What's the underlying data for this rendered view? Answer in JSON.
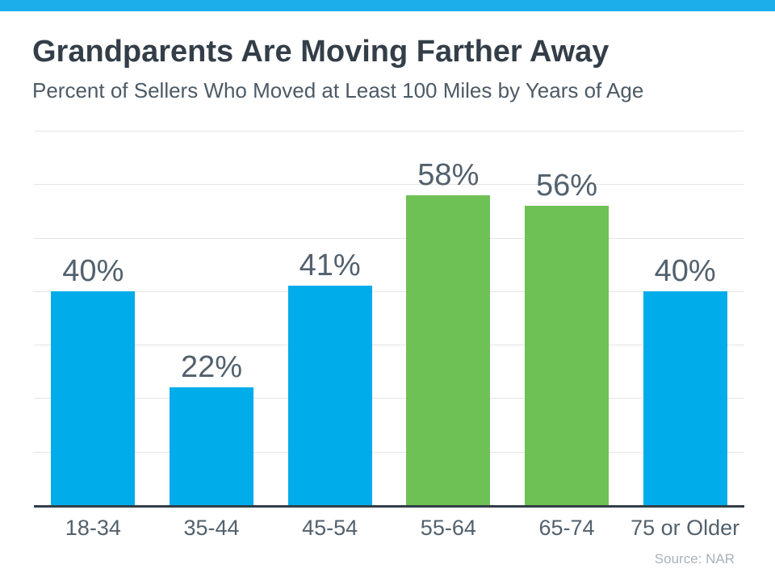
{
  "accent": {
    "top_bar_color": "#1CAEEA"
  },
  "header": {
    "title": "Grandparents Are Moving Farther Away",
    "subtitle": "Percent of Sellers Who Moved at Least 100 Miles by Years of Age"
  },
  "chart_data": {
    "type": "bar",
    "title": "Grandparents Are Moving Farther Away",
    "subtitle": "Percent of Sellers Who Moved at Least 100 Miles by Years of Age",
    "categories": [
      "18-34",
      "35-44",
      "45-54",
      "55-64",
      "65-74",
      "75 or Older"
    ],
    "values": [
      40,
      22,
      41,
      58,
      56,
      40
    ],
    "value_labels": [
      "40%",
      "22%",
      "41%",
      "58%",
      "56%",
      "40%"
    ],
    "bar_colors": [
      "#00ACEA",
      "#00ACEA",
      "#00ACEA",
      "#6EC154",
      "#6EC154",
      "#00ACEA"
    ],
    "highlight_color": "#6EC154",
    "default_bar_color": "#00ACEA",
    "ylim": [
      0,
      70
    ],
    "gridline_step": 10,
    "grid": true,
    "legend": "none",
    "xlabel": "",
    "ylabel": "",
    "source": "Source: NAR"
  }
}
